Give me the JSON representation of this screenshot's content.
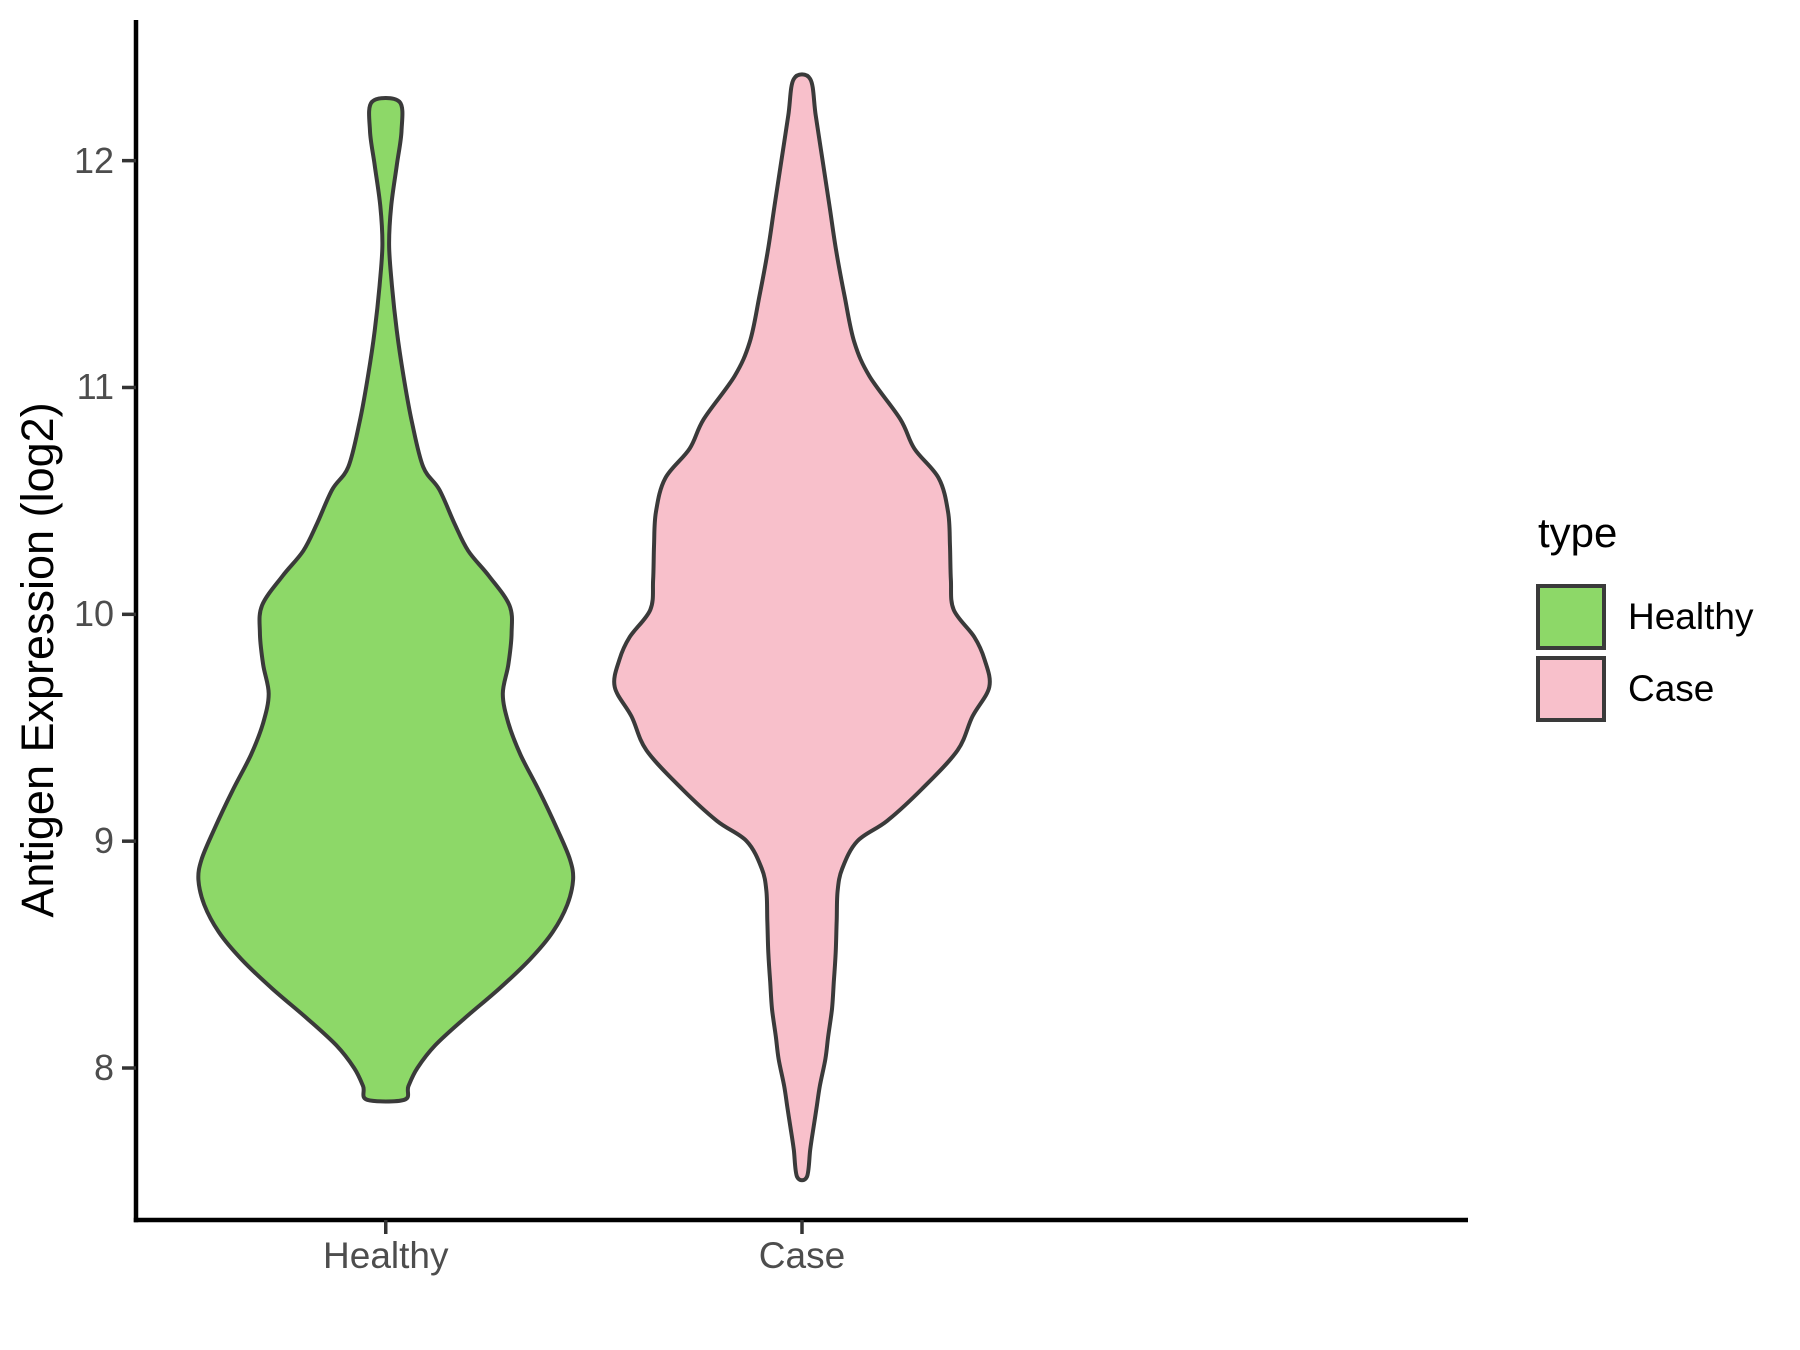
{
  "chart_data": {
    "type": "violin",
    "title": "",
    "xlabel": "",
    "ylabel": "Antigen Expression (log2)",
    "categories": [
      "Healthy",
      "Case"
    ],
    "y_ticks": [
      8,
      9,
      10,
      11,
      12
    ],
    "y_axis_visible_range": [
      7.33,
      12.62
    ],
    "grid": false,
    "legend": {
      "title": "type",
      "position": "right",
      "items": [
        {
          "label": "Healthy",
          "color": "#8DD868"
        },
        {
          "label": "Case",
          "color": "#F8C0CB"
        }
      ]
    },
    "style": {
      "outline_color": "#3A3A3A",
      "axis_line_color": "#000000",
      "tick_mark_color": "#333333",
      "tick_label_color": "#4D4D4D",
      "violin_width": 0.9
    },
    "series": [
      {
        "name": "Healthy",
        "fill": "#8DD868",
        "position": 1,
        "profile": [
          [
            12.26,
            0.073
          ],
          [
            12.13,
            0.084
          ],
          [
            11.98,
            0.059
          ],
          [
            11.8,
            0.029
          ],
          [
            11.63,
            0.018
          ],
          [
            11.45,
            0.033
          ],
          [
            11.25,
            0.059
          ],
          [
            11.05,
            0.095
          ],
          [
            10.85,
            0.139
          ],
          [
            10.65,
            0.2
          ],
          [
            10.55,
            0.286
          ],
          [
            10.4,
            0.367
          ],
          [
            10.28,
            0.44
          ],
          [
            10.17,
            0.55
          ],
          [
            10.04,
            0.66
          ],
          [
            9.92,
            0.672
          ],
          [
            9.78,
            0.655
          ],
          [
            9.65,
            0.625
          ],
          [
            9.52,
            0.655
          ],
          [
            9.38,
            0.72
          ],
          [
            9.22,
            0.82
          ],
          [
            9.05,
            0.917
          ],
          [
            8.92,
            0.983
          ],
          [
            8.83,
            1.0
          ],
          [
            8.72,
            0.969
          ],
          [
            8.6,
            0.892
          ],
          [
            8.48,
            0.771
          ],
          [
            8.35,
            0.606
          ],
          [
            8.22,
            0.422
          ],
          [
            8.1,
            0.264
          ],
          [
            8.0,
            0.169
          ],
          [
            7.92,
            0.121
          ],
          [
            7.86,
            0.099
          ]
        ]
      },
      {
        "name": "Case",
        "fill": "#F8C0CB",
        "position": 2,
        "profile": [
          [
            12.36,
            0.044
          ],
          [
            12.2,
            0.073
          ],
          [
            12.0,
            0.11
          ],
          [
            11.8,
            0.147
          ],
          [
            11.6,
            0.183
          ],
          [
            11.4,
            0.228
          ],
          [
            11.2,
            0.279
          ],
          [
            11.05,
            0.36
          ],
          [
            10.86,
            0.525
          ],
          [
            10.73,
            0.6
          ],
          [
            10.6,
            0.73
          ],
          [
            10.45,
            0.78
          ],
          [
            10.3,
            0.79
          ],
          [
            10.15,
            0.795
          ],
          [
            10.02,
            0.81
          ],
          [
            9.9,
            0.92
          ],
          [
            9.8,
            0.975
          ],
          [
            9.68,
            1.0
          ],
          [
            9.55,
            0.91
          ],
          [
            9.4,
            0.83
          ],
          [
            9.23,
            0.64
          ],
          [
            9.09,
            0.455
          ],
          [
            9.0,
            0.295
          ],
          [
            8.88,
            0.215
          ],
          [
            8.78,
            0.19
          ],
          [
            8.65,
            0.185
          ],
          [
            8.51,
            0.18
          ],
          [
            8.38,
            0.17
          ],
          [
            8.26,
            0.16
          ],
          [
            8.14,
            0.14
          ],
          [
            8.04,
            0.125
          ],
          [
            7.92,
            0.095
          ],
          [
            7.82,
            0.077
          ],
          [
            7.72,
            0.058
          ],
          [
            7.64,
            0.044
          ],
          [
            7.52,
            0.026
          ]
        ]
      }
    ]
  }
}
